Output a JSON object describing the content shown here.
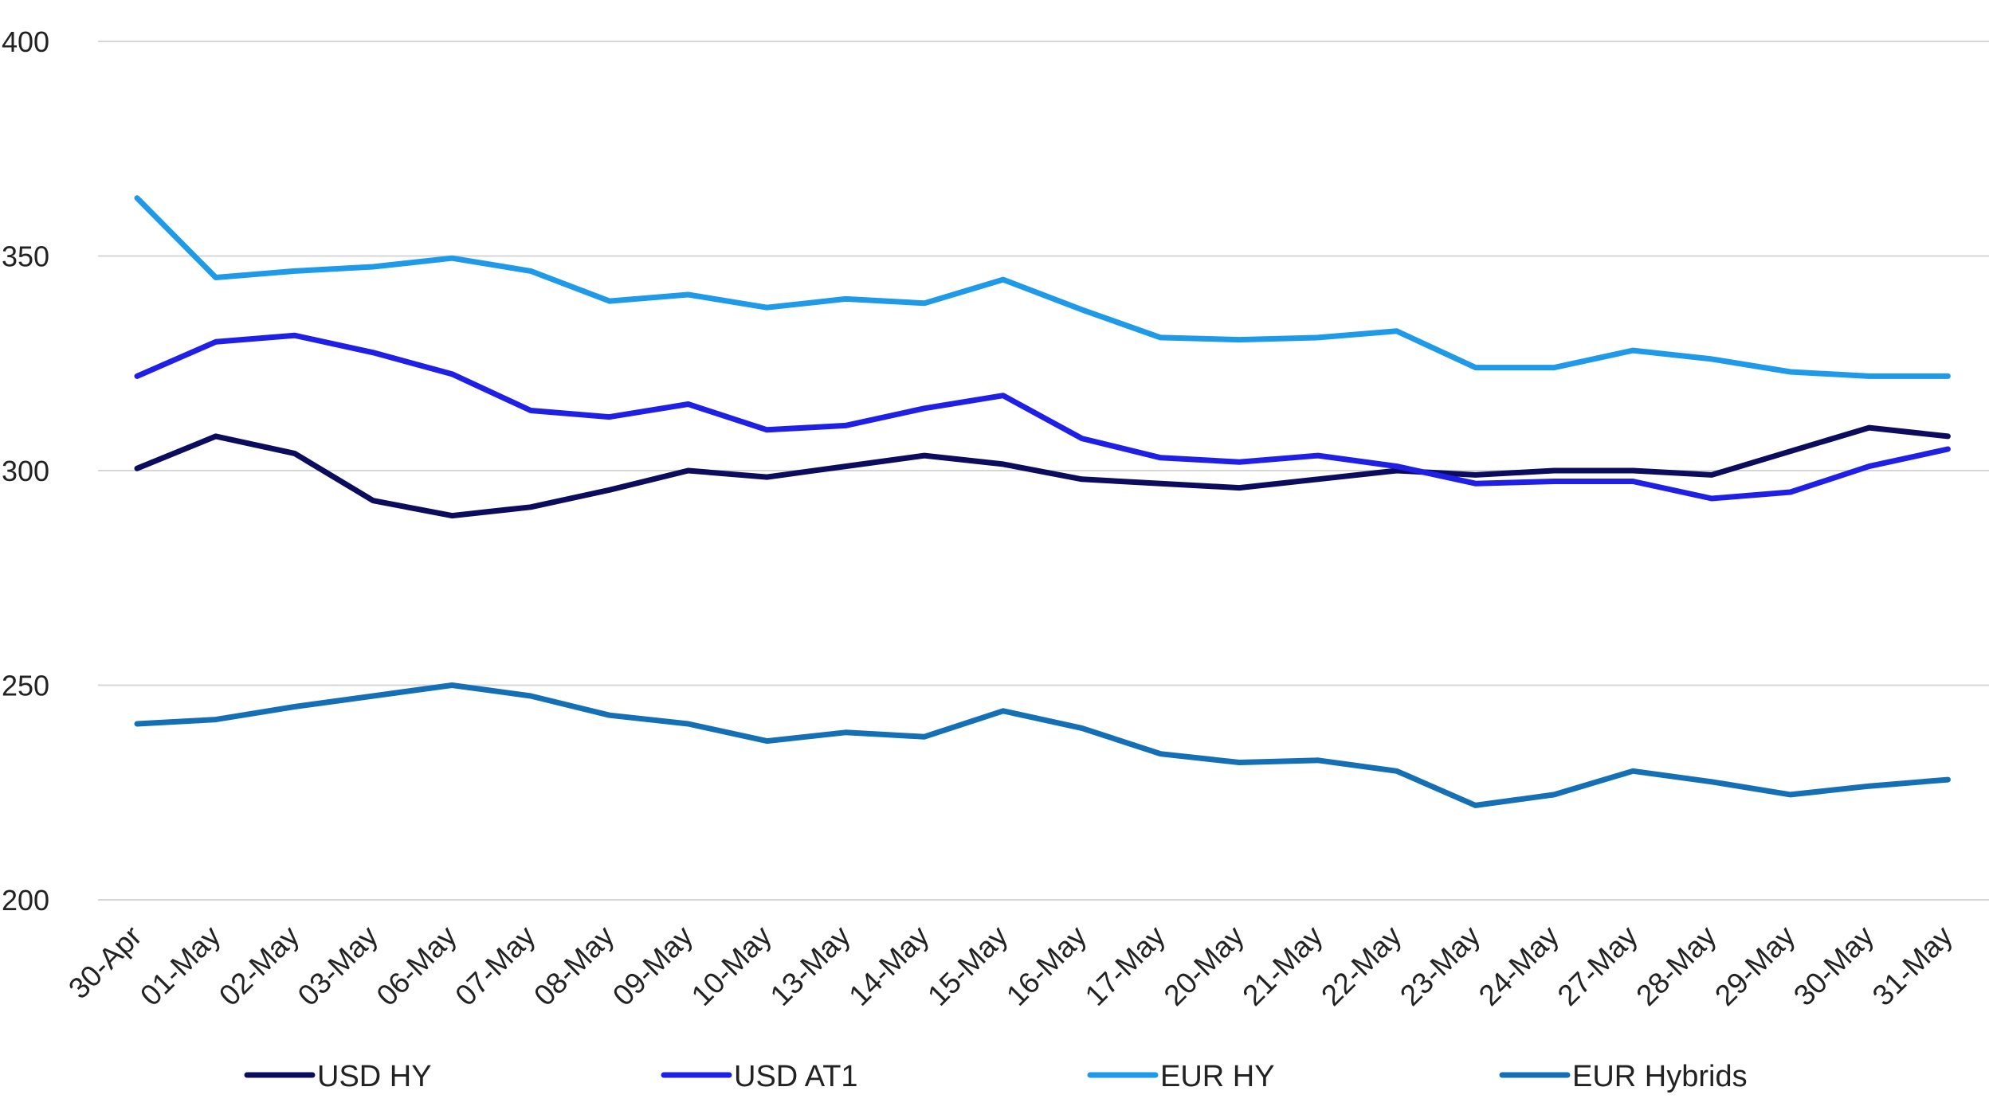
{
  "chart_data": {
    "type": "line",
    "title": "",
    "xlabel": "",
    "ylabel": "",
    "ylim": [
      200,
      400
    ],
    "yticks": [
      200,
      250,
      300,
      350,
      400
    ],
    "grid": true,
    "legend_position": "bottom",
    "categories": [
      "30-Apr",
      "01-May",
      "02-May",
      "03-May",
      "06-May",
      "07-May",
      "08-May",
      "09-May",
      "10-May",
      "13-May",
      "14-May",
      "15-May",
      "16-May",
      "17-May",
      "20-May",
      "21-May",
      "22-May",
      "23-May",
      "24-May",
      "27-May",
      "28-May",
      "29-May",
      "30-May",
      "31-May"
    ],
    "series": [
      {
        "name": "USD HY",
        "color": "#0c0c5e",
        "values": [
          300.5,
          308,
          304,
          293,
          289.5,
          291.5,
          295.5,
          300,
          298.5,
          301,
          303.5,
          301.5,
          298,
          297,
          296,
          298,
          300,
          299,
          300,
          300,
          299,
          304.5,
          310,
          308
        ]
      },
      {
        "name": "USD AT1",
        "color": "#1f1fe6",
        "values": [
          322,
          330,
          331.5,
          327.5,
          322.5,
          314,
          312.5,
          315.5,
          309.5,
          310.5,
          314.5,
          317.5,
          307.5,
          303,
          302,
          303.5,
          301,
          297,
          297.5,
          297.5,
          293.5,
          295,
          301,
          305
        ]
      },
      {
        "name": "EUR HY",
        "color": "#1e9ae8",
        "values": [
          363.5,
          345,
          346.5,
          347.5,
          349.5,
          346.5,
          339.5,
          341,
          338,
          340,
          339,
          344.5,
          337.5,
          331,
          330.5,
          331,
          332.5,
          324,
          324,
          328,
          326,
          323,
          322,
          322
        ]
      },
      {
        "name": "EUR Hybrids",
        "color": "#146fb5",
        "values": [
          241,
          242,
          245,
          247.5,
          250,
          247.5,
          243,
          241,
          237,
          239,
          238,
          244,
          240,
          234,
          232,
          232.5,
          230,
          222,
          224.5,
          230,
          227.5,
          224.5,
          226.5,
          228
        ]
      }
    ]
  }
}
